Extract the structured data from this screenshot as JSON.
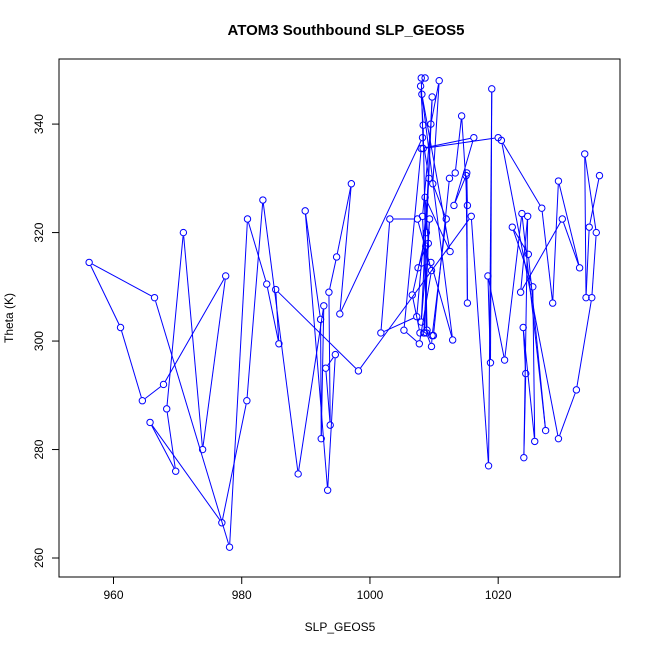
{
  "chart_data": {
    "type": "line",
    "title": "ATOM3 Southbound SLP_GEOS5",
    "xlabel": "SLP_GEOS5",
    "ylabel": "Theta (K)",
    "xlim": [
      951.5,
      1039.0
    ],
    "ylim": [
      256.5,
      352.0
    ],
    "xticks": [
      960,
      980,
      1000,
      1020
    ],
    "yticks": [
      260,
      280,
      300,
      320,
      340
    ],
    "grid": false,
    "legend": "none",
    "series_color": "#0000ff",
    "marker": "open-circle",
    "series": [
      {
        "x": [
          1020.0,
          1008.3,
          1008.0,
          1008.6,
          1007.9,
          1008.3,
          1008.9,
          1008.2,
          1009.5,
          1010.8,
          1009.8,
          1011.9,
          1009.7,
          1009.6,
          1008.8,
          1008.7,
          1007.5,
          1009.5,
          1012.9,
          1008.1,
          1012.5,
          1008.6,
          1009.1,
          1008.5,
          1007.8,
          1006.6,
          1008.8,
          1009.7,
          1008.0,
          1009.3,
          1008.4,
          1009.9,
          1012.4,
          1013.3,
          1014.3,
          1015.2,
          1015.1,
          1015.2,
          1015.0,
          1013.1,
          1016.2,
          1008.0,
          1005.3,
          1007.7,
          1009.6,
          1007.4,
          1003.1,
          1001.7,
          1007.3,
          1009.2,
          1008.2,
          995.3,
          997.1,
          994.8,
          993.6,
          993.8,
          993.1,
          994.6,
          993.4,
          989.9,
          992.3,
          992.4,
          992.8,
          988.8,
          983.3,
          980.8,
          976.9,
          965.7,
          969.7,
          968.3,
          970.9,
          973.9,
          977.5,
          967.8,
          964.5,
          961.1,
          956.2,
          966.4,
          978.1,
          980.9,
          983.9,
          985.8,
          985.3,
          998.2,
          1015.8,
          1018.5,
          1019.0,
          1018.8,
          1018.4,
          1021.0,
          1023.7,
          1027.4,
          1024.7,
          1022.2,
          1025.4,
          1025.7,
          1023.9,
          1024.3,
          1024.0,
          1024.6,
          1023.5,
          1030.0,
          1032.7,
          1029.4,
          1028.5,
          1026.8,
          1020.5,
          1029.4,
          1032.2,
          1034.6,
          1035.3,
          1033.5,
          1033.7,
          1034.2,
          1035.8
        ]
      }
    ],
    "series_y": [
      337.5,
      335.5,
      348.5,
      348.5,
      347.0,
      339.8,
      302.0,
      323.0,
      340.0,
      348.0,
      329.0,
      322.5,
      301.0,
      299.0,
      301.5,
      317.5,
      313.5,
      314.5,
      300.2,
      345.5,
      316.5,
      326.5,
      318.0,
      301.5,
      301.5,
      308.5,
      320.0,
      345.0,
      303.5,
      322.5,
      301.5,
      301.0,
      330.0,
      331.0,
      341.5,
      325.0,
      331.0,
      307.0,
      330.5,
      325.0,
      337.5,
      335.5,
      302.0,
      299.5,
      313.0,
      322.5,
      322.5,
      301.5,
      304.5,
      330.0,
      337.5,
      305.0,
      329.0,
      315.5,
      309.0,
      284.5,
      295.0,
      297.5,
      272.5,
      324.0,
      304.0,
      282.0,
      306.5,
      275.5,
      326.0,
      289.0,
      266.5,
      285.0,
      276.0,
      287.5,
      320.0,
      280.0,
      312.0,
      292.0,
      289.0,
      302.5,
      314.5,
      308.0,
      262.0,
      322.5,
      310.5,
      299.5,
      309.5,
      294.5,
      323.0,
      277.0,
      346.5,
      296.0,
      312.0,
      296.5,
      323.5,
      283.5,
      316.0,
      321.0,
      310.0,
      281.5,
      302.5,
      294.0,
      278.5,
      323.0,
      309.0,
      322.5,
      313.5,
      329.5,
      307.0,
      324.5,
      337.0,
      282.0,
      291.0,
      308.0,
      320.0,
      334.5,
      308.0,
      321.0,
      330.5
    ]
  }
}
